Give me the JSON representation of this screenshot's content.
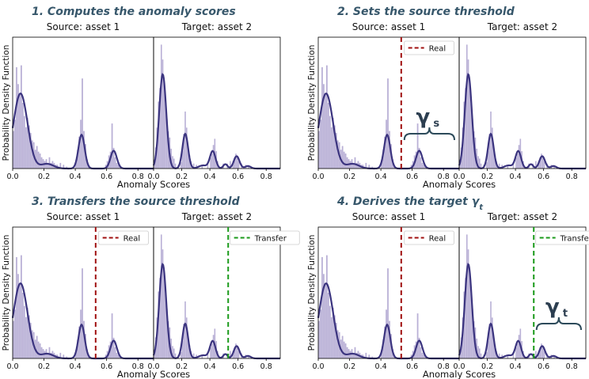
{
  "chart_data": [
    {
      "type": "bar",
      "title": "1. Computes the anomaly scores",
      "ylabel": "Probability Density Function",
      "xlabel": "Anomaly Scores",
      "subplots": [
        {
          "title": "Source: asset 1",
          "xlim": [
            0,
            0.9
          ],
          "xticks": [
            "0.0",
            "0.2",
            "0.4",
            "0.6",
            "0.8"
          ]
        },
        {
          "title": "Target: asset 2",
          "xlim": [
            0,
            0.9
          ],
          "xticks": [
            "0.0",
            "0.2",
            "0.4",
            "0.6",
            "0.8"
          ]
        }
      ],
      "legend": [],
      "thresholds": [],
      "brace": null
    },
    {
      "type": "bar",
      "title": "2. Sets the source threshold",
      "ylabel": "Probability Density Function",
      "xlabel": "Anomaly Scores",
      "subplots": [
        {
          "title": "Source: asset 1",
          "xlim": [
            0,
            0.9
          ],
          "xticks": [
            "0.0",
            "0.2",
            "0.4",
            "0.6",
            "0.8"
          ]
        },
        {
          "title": "Target: asset 2",
          "xlim": [
            0,
            0.9
          ],
          "xticks": [
            "0.0",
            "0.2",
            "0.4",
            "0.6",
            "0.8"
          ]
        }
      ],
      "legend": [
        {
          "label": "Real",
          "color": "#a01010",
          "subplot": 0
        }
      ],
      "thresholds": [
        {
          "subplot": 0,
          "x": 0.53,
          "color": "#a01010"
        }
      ],
      "brace": {
        "subplot": 0,
        "x0": 0.55,
        "x1": 0.9,
        "symbol": "γ",
        "sub": "s"
      }
    },
    {
      "type": "bar",
      "title": "3. Transfers the source threshold",
      "ylabel": "Probability Density Function",
      "xlabel": "Anomaly Scores",
      "subplots": [
        {
          "title": "Source: asset 1",
          "xlim": [
            0,
            0.9
          ],
          "xticks": [
            "0.0",
            "0.2",
            "0.4",
            "0.6",
            "0.8"
          ]
        },
        {
          "title": "Target: asset 2",
          "xlim": [
            0,
            0.9
          ],
          "xticks": [
            "0.0",
            "0.2",
            "0.4",
            "0.6",
            "0.8"
          ]
        }
      ],
      "legend": [
        {
          "label": "Real",
          "color": "#a01010",
          "subplot": 0
        },
        {
          "label": "Transfer",
          "color": "#1a9a1a",
          "subplot": 1
        }
      ],
      "thresholds": [
        {
          "subplot": 0,
          "x": 0.53,
          "color": "#a01010"
        },
        {
          "subplot": 1,
          "x": 0.53,
          "color": "#1a9a1a"
        }
      ],
      "brace": null
    },
    {
      "type": "bar",
      "title": "4. Derives the target γ",
      "title_sub": "t",
      "ylabel": "Probability Density Function",
      "xlabel": "Anomaly Scores",
      "subplots": [
        {
          "title": "Source: asset 1",
          "xlim": [
            0,
            0.9
          ],
          "xticks": [
            "0.0",
            "0.2",
            "0.4",
            "0.6",
            "0.8"
          ]
        },
        {
          "title": "Target: asset 2",
          "xlim": [
            0,
            0.9
          ],
          "xticks": [
            "0.0",
            "0.2",
            "0.4",
            "0.6",
            "0.8"
          ]
        }
      ],
      "legend": [
        {
          "label": "Real",
          "color": "#a01010",
          "subplot": 0
        },
        {
          "label": "Transfer",
          "color": "#1a9a1a",
          "subplot": 1
        }
      ],
      "thresholds": [
        {
          "subplot": 0,
          "x": 0.53,
          "color": "#a01010"
        },
        {
          "subplot": 1,
          "x": 0.53,
          "color": "#1a9a1a"
        }
      ],
      "brace": {
        "subplot": 1,
        "x0": 0.55,
        "x1": 0.9,
        "symbol": "γ",
        "sub": "t"
      }
    }
  ],
  "distributions": {
    "source": {
      "hist_x": [
        0.005,
        0.015,
        0.025,
        0.035,
        0.045,
        0.055,
        0.065,
        0.075,
        0.085,
        0.095,
        0.105,
        0.115,
        0.125,
        0.135,
        0.145,
        0.155,
        0.165,
        0.175,
        0.185,
        0.195,
        0.205,
        0.215,
        0.225,
        0.235,
        0.245,
        0.255,
        0.265,
        0.275,
        0.285,
        0.295,
        0.305,
        0.325,
        0.345,
        0.405,
        0.415,
        0.425,
        0.435,
        0.445,
        0.455,
        0.465,
        0.475,
        0.485,
        0.595,
        0.605,
        0.615,
        0.625,
        0.635,
        0.645,
        0.655,
        0.665,
        0.675,
        0.685
      ],
      "hist_y": [
        2.0,
        2.6,
        5.4,
        4.5,
        4.0,
        5.5,
        3.5,
        2.8,
        2.2,
        2.7,
        2.3,
        1.9,
        1.5,
        1.4,
        1.0,
        1.2,
        0.9,
        0.8,
        0.6,
        0.5,
        0.4,
        0.5,
        0.3,
        0.6,
        0.3,
        0.4,
        0.3,
        0.2,
        0.2,
        0.1,
        0.3,
        0.2,
        0.1,
        0.4,
        1.0,
        1.7,
        2.6,
        4.8,
        2.0,
        1.3,
        0.5,
        0.2,
        0.2,
        0.4,
        0.7,
        0.9,
        2.4,
        1.1,
        0.6,
        0.3,
        0.2,
        0.1
      ],
      "kde_peaks": [
        [
          0.05,
          4.0,
          0.045
        ],
        [
          0.44,
          1.8,
          0.02
        ],
        [
          0.645,
          0.95,
          0.02
        ],
        [
          0.22,
          0.25,
          0.04
        ]
      ],
      "ymax": 7.0
    },
    "target": {
      "hist_x": [
        0.005,
        0.015,
        0.025,
        0.035,
        0.045,
        0.055,
        0.065,
        0.075,
        0.085,
        0.095,
        0.105,
        0.115,
        0.125,
        0.135,
        0.145,
        0.155,
        0.175,
        0.195,
        0.205,
        0.215,
        0.225,
        0.235,
        0.245,
        0.255,
        0.265,
        0.285,
        0.305,
        0.345,
        0.385,
        0.405,
        0.415,
        0.425,
        0.435,
        0.445,
        0.455,
        0.495,
        0.525,
        0.545,
        0.565,
        0.575,
        0.585,
        0.595,
        0.605,
        0.625,
        0.655,
        0.675,
        0.695
      ],
      "hist_y": [
        0.6,
        1.7,
        3.3,
        5.4,
        6.5,
        10.0,
        8.8,
        7.1,
        5.2,
        4.0,
        3.0,
        2.5,
        1.6,
        1.0,
        0.8,
        0.4,
        0.3,
        0.5,
        1.4,
        2.8,
        4.6,
        3.3,
        1.7,
        1.1,
        0.6,
        0.4,
        0.3,
        0.3,
        0.5,
        0.9,
        1.2,
        1.9,
        2.4,
        1.4,
        0.6,
        0.4,
        0.4,
        0.6,
        0.6,
        0.9,
        1.2,
        0.9,
        0.6,
        0.4,
        0.3,
        0.2,
        0.1
      ],
      "kde_peaks": [
        [
          0.065,
          7.6,
          0.025
        ],
        [
          0.225,
          2.8,
          0.02
        ],
        [
          0.42,
          1.4,
          0.02
        ],
        [
          0.59,
          1.0,
          0.02
        ],
        [
          0.51,
          0.35,
          0.015
        ],
        [
          0.35,
          0.25,
          0.03
        ],
        [
          0.67,
          0.2,
          0.02
        ]
      ],
      "ymax": 10.6
    }
  },
  "colors": {
    "hist": "#9b8fc4",
    "kde": "#3b347f",
    "axis": "#000000",
    "title": "#37576b"
  }
}
